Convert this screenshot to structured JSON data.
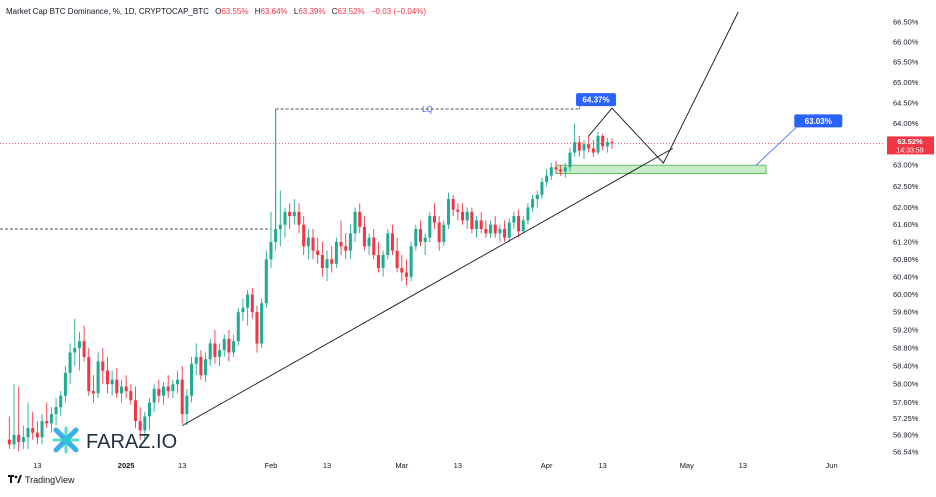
{
  "header": {
    "title": "Market Cap BTC Dominance, %, 1D, CRYPTOCAP_BTC",
    "o_label": "O",
    "o_value": "63.55%",
    "h_label": "H",
    "h_value": "63.64%",
    "l_label": "L",
    "l_value": "63.39%",
    "c_label": "C",
    "c_value": "63.52%",
    "change": "−0.03 (−0.04%)"
  },
  "footer": {
    "brand": "TradingView",
    "icon": "tradingview-logo-icon"
  },
  "watermark": {
    "text": "FARAZ.IO",
    "icon": "faraz-logo-icon"
  },
  "colors": {
    "up": "#22ab94",
    "down": "#f23645",
    "zone_fill": "#c8ecc8",
    "zone_border": "#4caf50",
    "label_blue": "#2962ff",
    "price_label": "#f23645"
  },
  "chart_data": {
    "type": "candlestick",
    "title": "Market Cap BTC Dominance, %, 1D, CRYPTOCAP_BTC",
    "y_ticks": [
      "66.50%",
      "66.00%",
      "65.50%",
      "65.00%",
      "64.50%",
      "64.00%",
      "63.50%",
      "63.00%",
      "62.50%",
      "62.00%",
      "61.60%",
      "61.20%",
      "60.80%",
      "60.40%",
      "60.00%",
      "59.60%",
      "59.20%",
      "58.80%",
      "58.40%",
      "58.00%",
      "57.60%",
      "57.25%",
      "56.90%",
      "56.54%"
    ],
    "y_scale": "log",
    "ylim": [
      56.45,
      66.75
    ],
    "x_ticks": [
      {
        "label": "13",
        "date": "2024-12-13"
      },
      {
        "label": "2025",
        "date": "2025-01-01"
      },
      {
        "label": "13",
        "date": "2025-01-13"
      },
      {
        "label": "Feb",
        "date": "2025-02-01"
      },
      {
        "label": "13",
        "date": "2025-02-13"
      },
      {
        "label": "Mar",
        "date": "2025-03-01"
      },
      {
        "label": "13",
        "date": "2025-03-13"
      },
      {
        "label": "Apr",
        "date": "2025-04-01"
      },
      {
        "label": "13",
        "date": "2025-04-13"
      },
      {
        "label": "May",
        "date": "2025-05-01"
      },
      {
        "label": "13",
        "date": "2025-05-13"
      },
      {
        "label": "Jun",
        "date": "2025-06-01"
      }
    ],
    "xlim": [
      "2024-12-05",
      "2025-06-12"
    ],
    "last_price": {
      "value": "63.52%",
      "countdown": "14:33:59"
    },
    "candles": [
      {
        "d": "2024-12-07",
        "o": 56.8,
        "h": 57.3,
        "l": 56.6,
        "c": 56.7
      },
      {
        "d": "2024-12-08",
        "o": 56.7,
        "h": 58.0,
        "l": 56.6,
        "c": 56.9
      },
      {
        "d": "2024-12-09",
        "o": 56.9,
        "h": 57.95,
        "l": 56.55,
        "c": 56.75
      },
      {
        "d": "2024-12-10",
        "o": 56.75,
        "h": 57.1,
        "l": 56.6,
        "c": 56.85
      },
      {
        "d": "2024-12-11",
        "o": 56.85,
        "h": 57.6,
        "l": 56.6,
        "c": 57.05
      },
      {
        "d": "2024-12-12",
        "o": 57.05,
        "h": 57.4,
        "l": 56.8,
        "c": 56.95
      },
      {
        "d": "2024-12-13",
        "o": 56.95,
        "h": 57.2,
        "l": 56.7,
        "c": 56.85
      },
      {
        "d": "2024-12-14",
        "o": 56.85,
        "h": 57.35,
        "l": 56.7,
        "c": 57.2
      },
      {
        "d": "2024-12-15",
        "o": 57.2,
        "h": 57.6,
        "l": 57.05,
        "c": 57.15
      },
      {
        "d": "2024-12-16",
        "o": 57.15,
        "h": 57.5,
        "l": 56.95,
        "c": 57.35
      },
      {
        "d": "2024-12-17",
        "o": 57.35,
        "h": 57.7,
        "l": 57.1,
        "c": 57.5
      },
      {
        "d": "2024-12-18",
        "o": 57.5,
        "h": 57.85,
        "l": 57.3,
        "c": 57.75
      },
      {
        "d": "2024-12-19",
        "o": 57.75,
        "h": 58.4,
        "l": 57.6,
        "c": 58.25
      },
      {
        "d": "2024-12-20",
        "o": 58.25,
        "h": 58.9,
        "l": 58.0,
        "c": 58.7
      },
      {
        "d": "2024-12-21",
        "o": 58.7,
        "h": 59.45,
        "l": 58.4,
        "c": 58.8
      },
      {
        "d": "2024-12-22",
        "o": 58.8,
        "h": 59.15,
        "l": 58.3,
        "c": 58.95
      },
      {
        "d": "2024-12-23",
        "o": 58.95,
        "h": 59.3,
        "l": 58.5,
        "c": 58.6
      },
      {
        "d": "2024-12-24",
        "o": 58.6,
        "h": 58.8,
        "l": 57.75,
        "c": 57.85
      },
      {
        "d": "2024-12-25",
        "o": 57.85,
        "h": 58.2,
        "l": 57.6,
        "c": 57.8
      },
      {
        "d": "2024-12-26",
        "o": 57.8,
        "h": 58.7,
        "l": 57.7,
        "c": 58.5
      },
      {
        "d": "2024-12-27",
        "o": 58.5,
        "h": 58.8,
        "l": 58.0,
        "c": 58.3
      },
      {
        "d": "2024-12-28",
        "o": 58.3,
        "h": 58.6,
        "l": 57.8,
        "c": 58.0
      },
      {
        "d": "2024-12-29",
        "o": 58.0,
        "h": 58.3,
        "l": 57.75,
        "c": 58.1
      },
      {
        "d": "2024-12-30",
        "o": 58.1,
        "h": 58.35,
        "l": 57.7,
        "c": 57.8
      },
      {
        "d": "2024-12-31",
        "o": 57.8,
        "h": 58.1,
        "l": 57.6,
        "c": 57.95
      },
      {
        "d": "2025-01-01",
        "o": 57.95,
        "h": 58.2,
        "l": 57.7,
        "c": 57.85
      },
      {
        "d": "2025-01-02",
        "o": 57.85,
        "h": 58.0,
        "l": 57.55,
        "c": 57.65
      },
      {
        "d": "2025-01-03",
        "o": 57.65,
        "h": 57.95,
        "l": 57.05,
        "c": 57.2
      },
      {
        "d": "2025-01-04",
        "o": 57.2,
        "h": 57.5,
        "l": 56.8,
        "c": 57.0
      },
      {
        "d": "2025-01-05",
        "o": 57.0,
        "h": 57.4,
        "l": 56.75,
        "c": 57.3
      },
      {
        "d": "2025-01-06",
        "o": 57.3,
        "h": 57.7,
        "l": 57.0,
        "c": 57.6
      },
      {
        "d": "2025-01-07",
        "o": 57.6,
        "h": 58.0,
        "l": 57.4,
        "c": 57.9
      },
      {
        "d": "2025-01-08",
        "o": 57.9,
        "h": 58.1,
        "l": 57.6,
        "c": 57.75
      },
      {
        "d": "2025-01-09",
        "o": 57.75,
        "h": 58.05,
        "l": 57.55,
        "c": 57.95
      },
      {
        "d": "2025-01-10",
        "o": 57.95,
        "h": 58.2,
        "l": 57.7,
        "c": 57.85
      },
      {
        "d": "2025-01-11",
        "o": 57.85,
        "h": 58.1,
        "l": 57.7,
        "c": 58.0
      },
      {
        "d": "2025-01-12",
        "o": 58.0,
        "h": 58.3,
        "l": 57.8,
        "c": 58.1
      },
      {
        "d": "2025-01-13",
        "o": 58.1,
        "h": 58.4,
        "l": 57.15,
        "c": 57.35
      },
      {
        "d": "2025-01-14",
        "o": 57.35,
        "h": 57.9,
        "l": 57.1,
        "c": 57.75
      },
      {
        "d": "2025-01-15",
        "o": 57.75,
        "h": 58.6,
        "l": 57.6,
        "c": 58.45
      },
      {
        "d": "2025-01-16",
        "o": 58.45,
        "h": 58.9,
        "l": 58.2,
        "c": 58.6
      },
      {
        "d": "2025-01-17",
        "o": 58.6,
        "h": 58.75,
        "l": 58.1,
        "c": 58.2
      },
      {
        "d": "2025-01-18",
        "o": 58.2,
        "h": 58.7,
        "l": 58.05,
        "c": 58.55
      },
      {
        "d": "2025-01-19",
        "o": 58.55,
        "h": 59.0,
        "l": 58.4,
        "c": 58.9
      },
      {
        "d": "2025-01-20",
        "o": 58.9,
        "h": 59.2,
        "l": 58.45,
        "c": 58.6
      },
      {
        "d": "2025-01-21",
        "o": 58.6,
        "h": 58.9,
        "l": 58.4,
        "c": 58.75
      },
      {
        "d": "2025-01-22",
        "o": 58.75,
        "h": 59.1,
        "l": 58.6,
        "c": 59.0
      },
      {
        "d": "2025-01-23",
        "o": 59.0,
        "h": 59.2,
        "l": 58.5,
        "c": 58.7
      },
      {
        "d": "2025-01-24",
        "o": 58.7,
        "h": 59.1,
        "l": 58.6,
        "c": 58.95
      },
      {
        "d": "2025-01-25",
        "o": 58.95,
        "h": 59.7,
        "l": 58.85,
        "c": 59.6
      },
      {
        "d": "2025-01-26",
        "o": 59.6,
        "h": 59.9,
        "l": 59.4,
        "c": 59.7
      },
      {
        "d": "2025-01-27",
        "o": 59.7,
        "h": 60.1,
        "l": 59.3,
        "c": 60.0
      },
      {
        "d": "2025-01-28",
        "o": 60.0,
        "h": 60.15,
        "l": 59.45,
        "c": 59.6
      },
      {
        "d": "2025-01-29",
        "o": 59.6,
        "h": 59.75,
        "l": 58.7,
        "c": 58.9
      },
      {
        "d": "2025-01-30",
        "o": 58.9,
        "h": 59.9,
        "l": 58.8,
        "c": 59.8
      },
      {
        "d": "2025-01-31",
        "o": 59.8,
        "h": 61.0,
        "l": 59.7,
        "c": 60.8
      },
      {
        "d": "2025-02-01",
        "o": 60.8,
        "h": 61.9,
        "l": 60.6,
        "c": 61.2
      },
      {
        "d": "2025-02-02",
        "o": 61.2,
        "h": 64.35,
        "l": 61.0,
        "c": 61.5
      },
      {
        "d": "2025-02-03",
        "o": 61.5,
        "h": 62.4,
        "l": 61.1,
        "c": 61.6
      },
      {
        "d": "2025-02-04",
        "o": 61.6,
        "h": 62.0,
        "l": 61.3,
        "c": 61.9
      },
      {
        "d": "2025-02-05",
        "o": 61.9,
        "h": 62.1,
        "l": 61.5,
        "c": 61.8
      },
      {
        "d": "2025-02-06",
        "o": 61.8,
        "h": 62.2,
        "l": 61.6,
        "c": 61.9
      },
      {
        "d": "2025-02-07",
        "o": 61.9,
        "h": 62.1,
        "l": 61.4,
        "c": 61.6
      },
      {
        "d": "2025-02-08",
        "o": 61.6,
        "h": 61.8,
        "l": 60.9,
        "c": 61.1
      },
      {
        "d": "2025-02-09",
        "o": 61.1,
        "h": 61.5,
        "l": 60.8,
        "c": 61.3
      },
      {
        "d": "2025-02-10",
        "o": 61.3,
        "h": 61.5,
        "l": 60.8,
        "c": 61.0
      },
      {
        "d": "2025-02-11",
        "o": 61.0,
        "h": 61.3,
        "l": 60.7,
        "c": 60.9
      },
      {
        "d": "2025-02-12",
        "o": 60.9,
        "h": 61.2,
        "l": 60.4,
        "c": 60.6
      },
      {
        "d": "2025-02-13",
        "o": 60.6,
        "h": 61.0,
        "l": 60.3,
        "c": 60.8
      },
      {
        "d": "2025-02-14",
        "o": 60.8,
        "h": 61.1,
        "l": 60.5,
        "c": 60.7
      },
      {
        "d": "2025-02-15",
        "o": 60.7,
        "h": 61.3,
        "l": 60.6,
        "c": 61.2
      },
      {
        "d": "2025-02-16",
        "o": 61.2,
        "h": 61.7,
        "l": 60.9,
        "c": 61.1
      },
      {
        "d": "2025-02-17",
        "o": 61.1,
        "h": 61.4,
        "l": 60.8,
        "c": 61.0
      },
      {
        "d": "2025-02-18",
        "o": 61.0,
        "h": 61.6,
        "l": 60.8,
        "c": 61.4
      },
      {
        "d": "2025-02-19",
        "o": 61.4,
        "h": 62.0,
        "l": 61.2,
        "c": 61.9
      },
      {
        "d": "2025-02-20",
        "o": 61.9,
        "h": 62.1,
        "l": 61.4,
        "c": 61.55
      },
      {
        "d": "2025-02-21",
        "o": 61.55,
        "h": 61.8,
        "l": 61.0,
        "c": 61.1
      },
      {
        "d": "2025-02-22",
        "o": 61.1,
        "h": 61.4,
        "l": 60.9,
        "c": 61.3
      },
      {
        "d": "2025-02-23",
        "o": 61.3,
        "h": 61.5,
        "l": 60.8,
        "c": 60.9
      },
      {
        "d": "2025-02-24",
        "o": 60.9,
        "h": 61.2,
        "l": 60.5,
        "c": 60.6
      },
      {
        "d": "2025-02-25",
        "o": 60.6,
        "h": 61.0,
        "l": 60.4,
        "c": 60.9
      },
      {
        "d": "2025-02-26",
        "o": 60.9,
        "h": 61.5,
        "l": 60.8,
        "c": 61.4
      },
      {
        "d": "2025-02-27",
        "o": 61.4,
        "h": 61.6,
        "l": 60.9,
        "c": 61.0
      },
      {
        "d": "2025-02-28",
        "o": 61.0,
        "h": 61.3,
        "l": 60.5,
        "c": 60.6
      },
      {
        "d": "2025-03-01",
        "o": 60.6,
        "h": 60.9,
        "l": 60.3,
        "c": 60.5
      },
      {
        "d": "2025-03-02",
        "o": 60.5,
        "h": 60.8,
        "l": 60.2,
        "c": 60.4
      },
      {
        "d": "2025-03-03",
        "o": 60.4,
        "h": 61.2,
        "l": 60.3,
        "c": 61.1
      },
      {
        "d": "2025-03-04",
        "o": 61.1,
        "h": 61.6,
        "l": 61.0,
        "c": 61.5
      },
      {
        "d": "2025-03-05",
        "o": 61.5,
        "h": 61.7,
        "l": 61.1,
        "c": 61.2
      },
      {
        "d": "2025-03-06",
        "o": 61.2,
        "h": 61.4,
        "l": 60.9,
        "c": 61.3
      },
      {
        "d": "2025-03-07",
        "o": 61.3,
        "h": 61.9,
        "l": 61.2,
        "c": 61.8
      },
      {
        "d": "2025-03-08",
        "o": 61.8,
        "h": 62.1,
        "l": 61.5,
        "c": 61.65
      },
      {
        "d": "2025-03-09",
        "o": 61.65,
        "h": 61.8,
        "l": 61.0,
        "c": 61.2
      },
      {
        "d": "2025-03-10",
        "o": 61.2,
        "h": 61.7,
        "l": 61.1,
        "c": 61.6
      },
      {
        "d": "2025-03-11",
        "o": 61.6,
        "h": 62.35,
        "l": 61.5,
        "c": 62.2
      },
      {
        "d": "2025-03-12",
        "o": 62.2,
        "h": 62.3,
        "l": 61.8,
        "c": 61.95
      },
      {
        "d": "2025-03-13",
        "o": 61.95,
        "h": 62.1,
        "l": 61.7,
        "c": 61.9
      },
      {
        "d": "2025-03-14",
        "o": 61.9,
        "h": 62.1,
        "l": 61.6,
        "c": 61.7
      },
      {
        "d": "2025-03-15",
        "o": 61.7,
        "h": 62.0,
        "l": 61.5,
        "c": 61.9
      },
      {
        "d": "2025-03-16",
        "o": 61.9,
        "h": 62.0,
        "l": 61.4,
        "c": 61.5
      },
      {
        "d": "2025-03-17",
        "o": 61.5,
        "h": 61.8,
        "l": 61.3,
        "c": 61.7
      },
      {
        "d": "2025-03-18",
        "o": 61.7,
        "h": 61.9,
        "l": 61.4,
        "c": 61.5
      },
      {
        "d": "2025-03-19",
        "o": 61.5,
        "h": 61.7,
        "l": 61.3,
        "c": 61.4
      },
      {
        "d": "2025-03-20",
        "o": 61.4,
        "h": 61.7,
        "l": 61.3,
        "c": 61.6
      },
      {
        "d": "2025-03-21",
        "o": 61.6,
        "h": 61.8,
        "l": 61.3,
        "c": 61.4
      },
      {
        "d": "2025-03-22",
        "o": 61.4,
        "h": 61.6,
        "l": 61.2,
        "c": 61.5
      },
      {
        "d": "2025-03-23",
        "o": 61.5,
        "h": 61.7,
        "l": 61.2,
        "c": 61.3
      },
      {
        "d": "2025-03-24",
        "o": 61.3,
        "h": 61.75,
        "l": 61.2,
        "c": 61.65
      },
      {
        "d": "2025-03-25",
        "o": 61.65,
        "h": 61.9,
        "l": 61.5,
        "c": 61.8
      },
      {
        "d": "2025-03-26",
        "o": 61.8,
        "h": 61.95,
        "l": 61.3,
        "c": 61.45
      },
      {
        "d": "2025-03-27",
        "o": 61.45,
        "h": 61.8,
        "l": 61.4,
        "c": 61.7
      },
      {
        "d": "2025-03-28",
        "o": 61.7,
        "h": 62.1,
        "l": 61.6,
        "c": 62.0
      },
      {
        "d": "2025-03-29",
        "o": 62.0,
        "h": 62.3,
        "l": 61.9,
        "c": 62.2
      },
      {
        "d": "2025-03-30",
        "o": 62.2,
        "h": 62.4,
        "l": 62.0,
        "c": 62.3
      },
      {
        "d": "2025-03-31",
        "o": 62.3,
        "h": 62.7,
        "l": 62.2,
        "c": 62.6
      },
      {
        "d": "2025-04-01",
        "o": 62.6,
        "h": 62.9,
        "l": 62.5,
        "c": 62.75
      },
      {
        "d": "2025-04-02",
        "o": 62.75,
        "h": 63.05,
        "l": 62.65,
        "c": 62.95
      },
      {
        "d": "2025-04-03",
        "o": 62.95,
        "h": 63.1,
        "l": 62.8,
        "c": 62.9
      },
      {
        "d": "2025-04-04",
        "o": 62.9,
        "h": 63.0,
        "l": 62.75,
        "c": 62.85
      },
      {
        "d": "2025-04-05",
        "o": 62.85,
        "h": 63.05,
        "l": 62.7,
        "c": 62.95
      },
      {
        "d": "2025-04-06",
        "o": 62.95,
        "h": 63.4,
        "l": 62.85,
        "c": 63.3
      },
      {
        "d": "2025-04-07",
        "o": 63.3,
        "h": 64.0,
        "l": 63.2,
        "c": 63.55
      },
      {
        "d": "2025-04-08",
        "o": 63.55,
        "h": 63.7,
        "l": 63.2,
        "c": 63.35
      },
      {
        "d": "2025-04-09",
        "o": 63.35,
        "h": 63.6,
        "l": 63.15,
        "c": 63.5
      },
      {
        "d": "2025-04-10",
        "o": 63.5,
        "h": 63.7,
        "l": 63.3,
        "c": 63.4
      },
      {
        "d": "2025-04-11",
        "o": 63.4,
        "h": 63.6,
        "l": 63.2,
        "c": 63.3
      },
      {
        "d": "2025-04-12",
        "o": 63.3,
        "h": 63.8,
        "l": 63.25,
        "c": 63.7
      },
      {
        "d": "2025-04-13",
        "o": 63.7,
        "h": 63.75,
        "l": 63.35,
        "c": 63.45
      },
      {
        "d": "2025-04-14",
        "o": 63.45,
        "h": 63.65,
        "l": 63.3,
        "c": 63.55
      },
      {
        "d": "2025-04-15",
        "o": 63.55,
        "h": 63.64,
        "l": 63.39,
        "c": 63.52
      }
    ],
    "drawings": {
      "prior_level": {
        "price": 61.5,
        "from": "2024-12-05",
        "to": "2025-02-01"
      },
      "lq_line": {
        "label": "LQ",
        "price": 64.35,
        "from": "2025-02-02",
        "to": "2025-04-08"
      },
      "lq_riser": {
        "date": "2025-02-02",
        "from_price": 61.5,
        "to_price": 64.35
      },
      "target_high": {
        "text": "64.37%",
        "value": 64.37
      },
      "target_low": {
        "text": "63.03%",
        "value": 63.03
      },
      "demand_zone": {
        "from": "2025-04-03",
        "to": "2025-05-18",
        "top": 63.0,
        "bottom": 62.8
      },
      "trendline": {
        "from": {
          "d": "2025-01-13",
          "v": 57.1
        },
        "to": {
          "d": "2025-04-28",
          "v": 63.4
        }
      },
      "projection": [
        {
          "d": "2025-04-10",
          "v": 63.7
        },
        {
          "d": "2025-04-15",
          "v": 64.37
        },
        {
          "d": "2025-04-26",
          "v": 63.05
        },
        {
          "d": "2025-05-12",
          "v": 66.75
        }
      ],
      "last_price_line": 63.52
    }
  }
}
